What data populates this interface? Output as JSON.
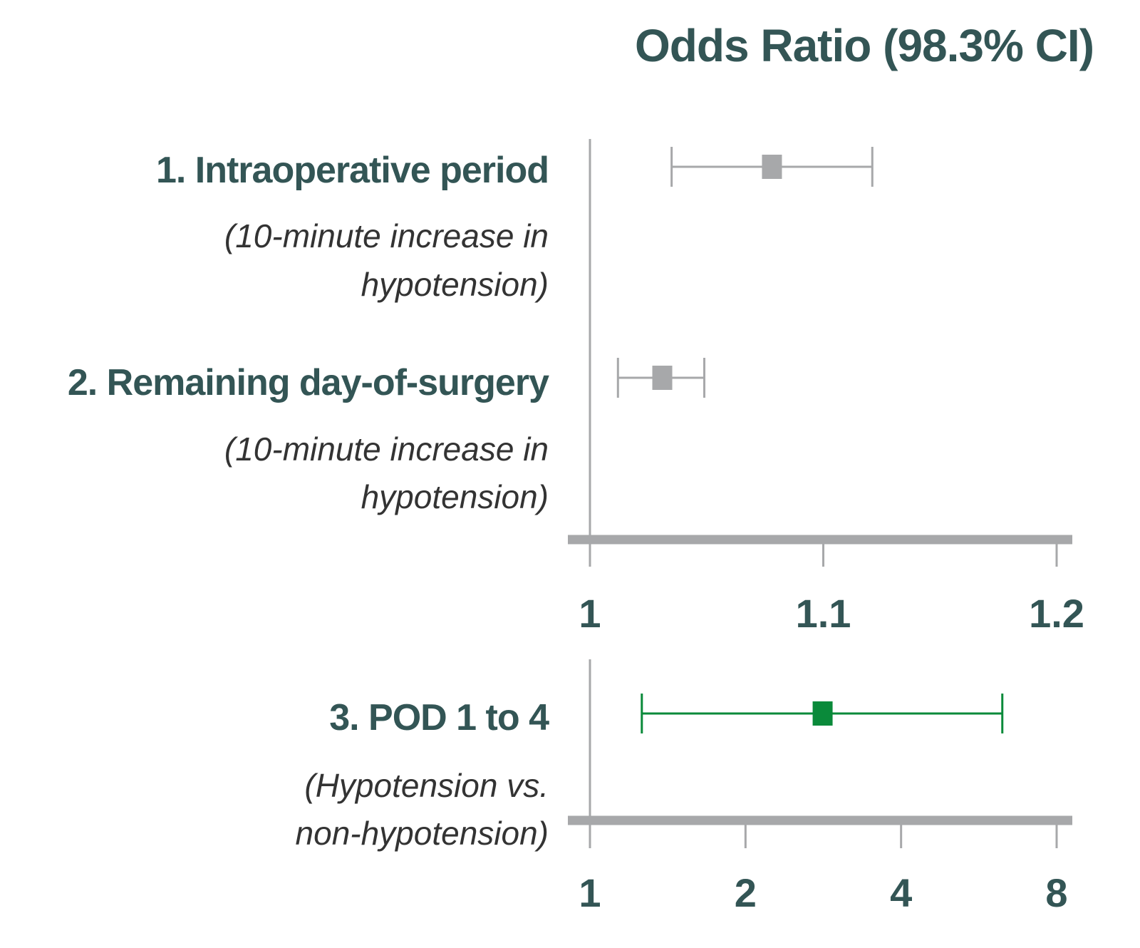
{
  "chart_data": {
    "type": "forest",
    "title": "Odds Ratio (98.3% CI)",
    "colors": {
      "text": "#335555",
      "subtext": "#333333",
      "axis": "#a7a8aa",
      "grey_marker": "#a7a8aa",
      "green_marker": "#0a8a3a"
    },
    "panels": [
      {
        "scale": "linear",
        "ticks": [
          "1",
          "1.1",
          "1.2"
        ],
        "tick_values": [
          1,
          1.1,
          1.2
        ],
        "xlim": [
          1,
          1.2
        ],
        "rows": [
          {
            "label": "1. Intraoperative period",
            "sublabel_lines": [
              "(10-minute increase in",
              "hypotension)"
            ],
            "or": 1.078,
            "ci_low": 1.035,
            "ci_high": 1.121,
            "color": "#a7a8aa"
          },
          {
            "label": "2. Remaining day-of-surgery",
            "sublabel_lines": [
              "(10-minute increase in",
              "hypotension)"
            ],
            "or": 1.031,
            "ci_low": 1.012,
            "ci_high": 1.049,
            "color": "#a7a8aa"
          }
        ]
      },
      {
        "scale": "log2",
        "ticks": [
          "1",
          "2",
          "4",
          "8"
        ],
        "tick_values": [
          1,
          2,
          4,
          8
        ],
        "xlim": [
          1,
          8
        ],
        "rows": [
          {
            "label": "3. POD 1 to 4",
            "sublabel_lines": [
              "(Hypotension vs.",
              "non-hypotension)"
            ],
            "or": 2.82,
            "ci_low": 1.26,
            "ci_high": 6.28,
            "color": "#0a8a3a"
          }
        ]
      }
    ]
  }
}
